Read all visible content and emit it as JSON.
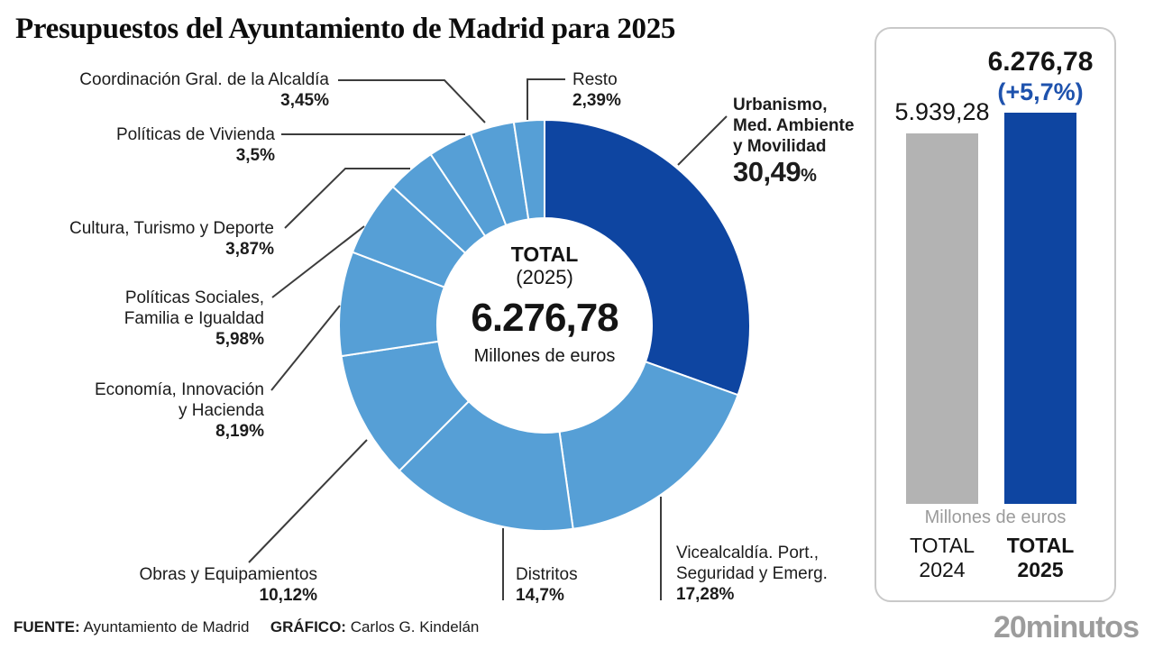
{
  "title": "Presupuestos del Ayuntamiento de Madrid para 2025",
  "colors": {
    "primary_dark_blue": "#0e45a1",
    "light_blue": "#569fd6",
    "bar_gray": "#b3b3b3",
    "delta_blue": "#1e52ad",
    "leader_line": "#3c3c3c",
    "muted_text": "#9b9b9b"
  },
  "chart_data": [
    {
      "type": "pie",
      "title": "Presupuestos del Ayuntamiento de Madrid para 2025",
      "center": {
        "total_label": "TOTAL",
        "year_label": "(2025)",
        "total_value": "6.276,78",
        "unit": "Millones de euros"
      },
      "segments": [
        {
          "id": "urbanismo",
          "label": "Urbanismo, Med. Ambiente y Movilidad",
          "label_lines": [
            "Urbanismo,",
            "Med. Ambiente",
            "y Movilidad"
          ],
          "value": 30.49,
          "pct_label": "30,49%",
          "color": "#0e45a1"
        },
        {
          "id": "vicealcaldia",
          "label": "Vicealcaldía. Port., Seguridad y Emerg.",
          "label_lines": [
            "Vicealcaldía. Port.,",
            "Seguridad y Emerg."
          ],
          "value": 17.28,
          "pct_label": "17,28%",
          "color": "#569fd6"
        },
        {
          "id": "distritos",
          "label": "Distritos",
          "label_lines": [
            "Distritos"
          ],
          "value": 14.7,
          "pct_label": "14,7%",
          "color": "#569fd6"
        },
        {
          "id": "obras",
          "label": "Obras y Equipamientos",
          "label_lines": [
            "Obras y Equipamientos"
          ],
          "value": 10.12,
          "pct_label": "10,12%",
          "color": "#569fd6"
        },
        {
          "id": "economia",
          "label": "Economía, Innovación y Hacienda",
          "label_lines": [
            "Economía, Innovación",
            "y Hacienda"
          ],
          "value": 8.19,
          "pct_label": "8,19%",
          "color": "#569fd6"
        },
        {
          "id": "sociales",
          "label": "Políticas Sociales, Familia e Igualdad",
          "label_lines": [
            "Políticas Sociales,",
            "Familia e Igualdad"
          ],
          "value": 5.98,
          "pct_label": "5,98%",
          "color": "#569fd6"
        },
        {
          "id": "cultura",
          "label": "Cultura, Turismo y Deporte",
          "label_lines": [
            "Cultura, Turismo y Deporte"
          ],
          "value": 3.87,
          "pct_label": "3,87%",
          "color": "#569fd6"
        },
        {
          "id": "vivienda",
          "label": "Políticas de Vivienda",
          "label_lines": [
            "Políticas de Vivienda"
          ],
          "value": 3.5,
          "pct_label": "3,5%",
          "color": "#569fd6"
        },
        {
          "id": "coordinacion",
          "label": "Coordinación Gral. de la Alcaldía",
          "label_lines": [
            "Coordinación Gral. de la Alcaldía"
          ],
          "value": 3.45,
          "pct_label": "3,45%",
          "color": "#569fd6"
        },
        {
          "id": "resto",
          "label": "Resto",
          "label_lines": [
            "Resto"
          ],
          "value": 2.39,
          "pct_label": "2,39%",
          "color": "#569fd6"
        }
      ]
    },
    {
      "type": "bar",
      "categories": [
        "TOTAL 2024",
        "TOTAL 2025"
      ],
      "category_lines": [
        [
          "TOTAL",
          "2024"
        ],
        [
          "TOTAL",
          "2025"
        ]
      ],
      "values": [
        5939.28,
        6276.78
      ],
      "value_labels": [
        "5.939,28",
        "6.276,78"
      ],
      "delta_label": "(+5,7%)",
      "unit": "Millones de euros",
      "colors": [
        "#b3b3b3",
        "#0e45a1"
      ],
      "legend_position": "none",
      "grid": false
    }
  ],
  "footer": {
    "source_label": "FUENTE:",
    "source": "Ayuntamiento de Madrid",
    "credit_label": "GRÁFICO:",
    "credit": "Carlos G. Kindelán"
  },
  "brand": {
    "logo": "20minutos"
  }
}
